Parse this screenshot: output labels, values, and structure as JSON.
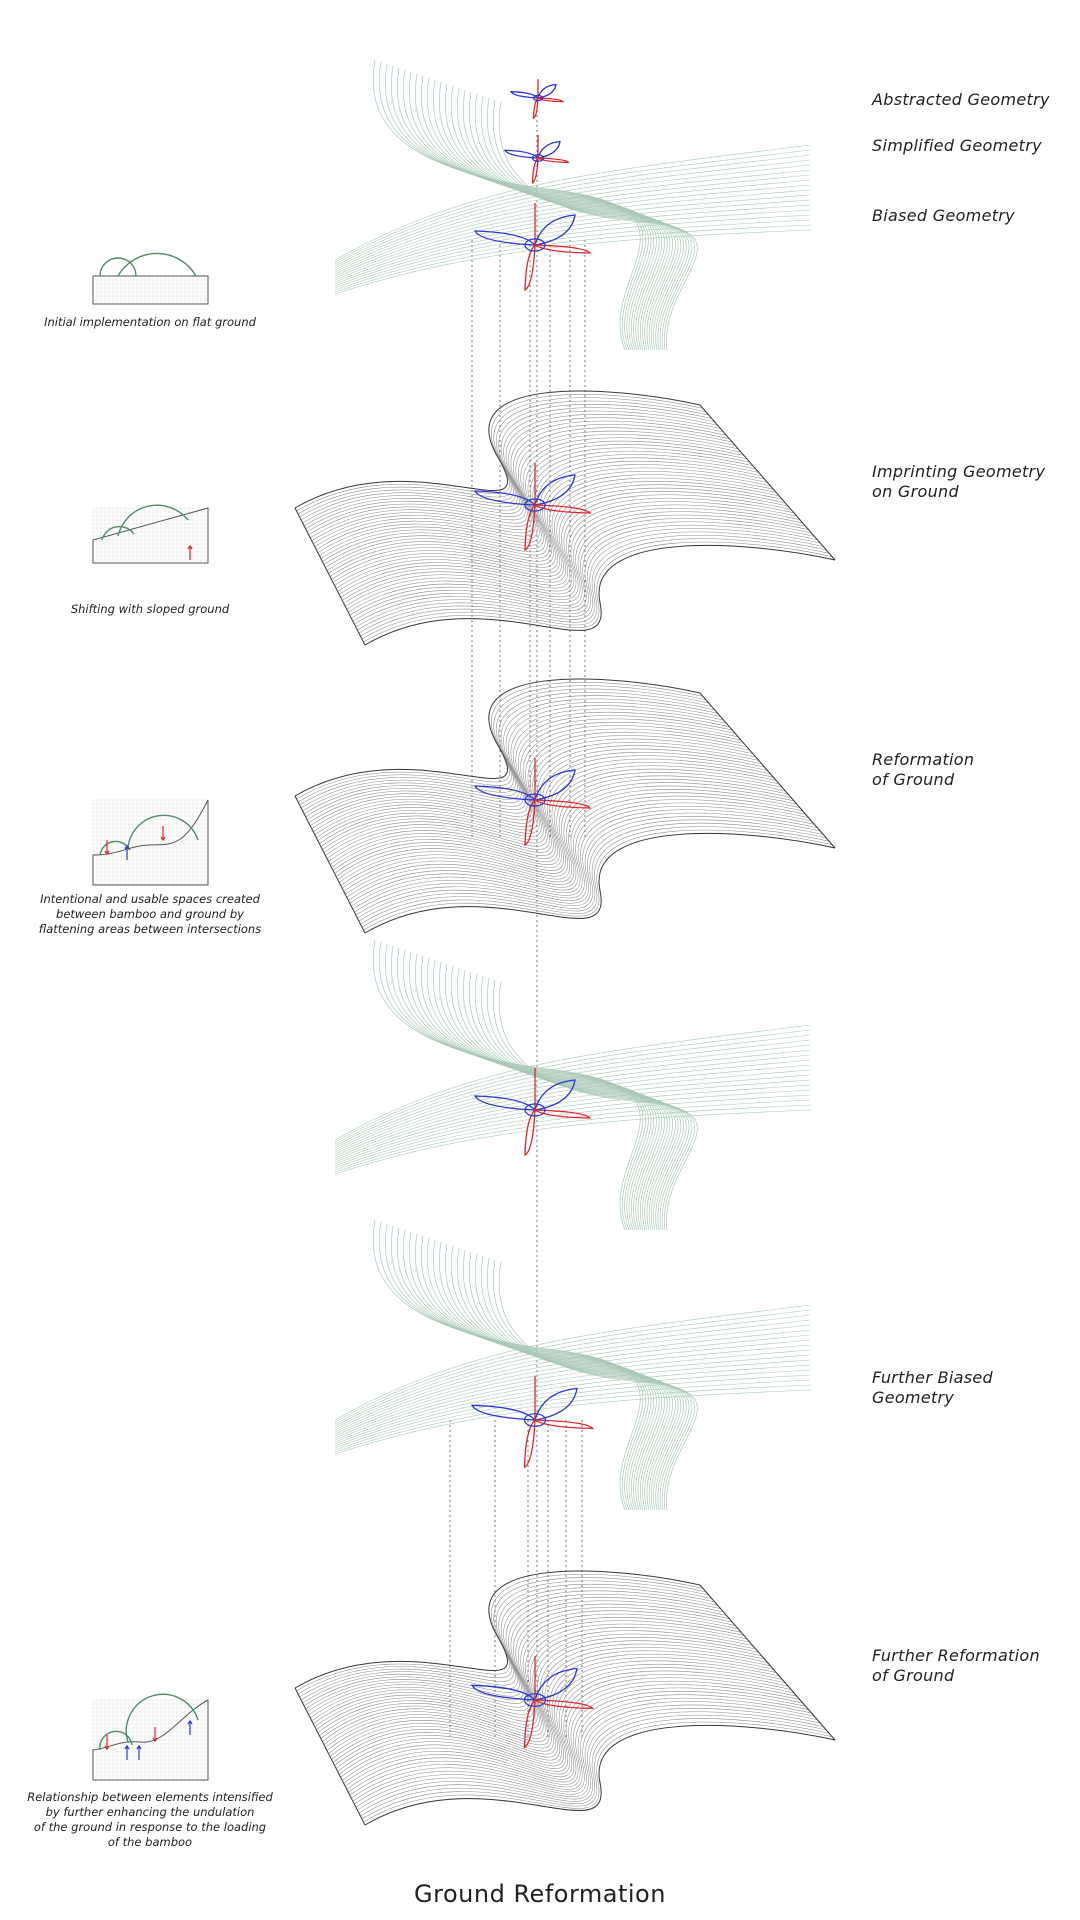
{
  "title": "Ground Reformation",
  "stage_labels": {
    "abstracted": [
      "Abstracted Geometry"
    ],
    "simplified": [
      "Simplified Geometry"
    ],
    "biased": [
      "Biased Geometry"
    ],
    "imprinting": [
      "Imprinting Geometry",
      "on Ground"
    ],
    "reformation": [
      "Reformation",
      "of Ground"
    ],
    "further_biased": [
      "Further Biased",
      "Geometry"
    ],
    "further_reformation": [
      "Further Reformation",
      "of Ground"
    ]
  },
  "section_captions": {
    "flat": [
      "Initial implementation on flat ground"
    ],
    "sloped": [
      "Shifting with sloped ground"
    ],
    "usable": [
      "Intentional and usable spaces created",
      "between bamboo and ground by",
      "flattening areas between intersections"
    ],
    "intensified": [
      "Relationship between elements intensified",
      "by further enhancing the undulation",
      "of the ground in response to the loading",
      "of the bamboo"
    ]
  },
  "colors": {
    "ground_line": "#8c8c8c",
    "ground_edge": "#3a3a3a",
    "bamboo_green": "#4e8f6a",
    "bamboo_faint": "#a9c9b6",
    "petal_red": "#e0252a",
    "petal_blue": "#2a37d8",
    "guide": "#555555",
    "section_grid": "#d9d9d9"
  }
}
